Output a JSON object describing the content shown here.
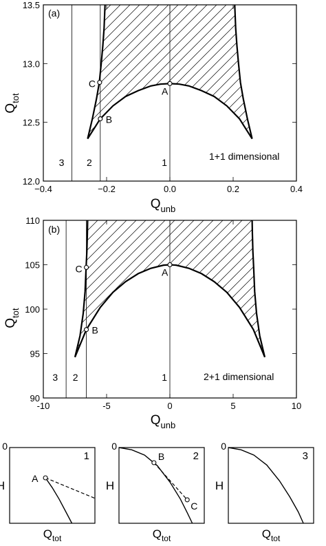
{
  "chart_data": [
    {
      "type": "line",
      "panel_label": "(a)",
      "annotation": "1+1 dimensional",
      "xlabel": "Q",
      "xlabel_sub": "unb",
      "ylabel": "Q",
      "ylabel_sub": "tot",
      "xlim": [
        -0.4,
        0.4
      ],
      "ylim": [
        12.0,
        13.5
      ],
      "x_ticks": [
        -0.4,
        -0.2,
        0.0,
        0.2,
        0.4
      ],
      "x_tick_labels": [
        "−0.4",
        "−0.2",
        "0.0",
        "0.2",
        "0.4"
      ],
      "y_ticks": [
        12.0,
        12.5,
        13.0,
        13.5
      ],
      "y_tick_labels": [
        "12.0",
        "12.5",
        "13.0",
        "13.5"
      ],
      "series": [
        {
          "role": "lower-boundary",
          "x": [
            -0.26,
            -0.22,
            -0.18,
            -0.14,
            -0.1,
            -0.06,
            -0.03,
            0.0,
            0.03,
            0.06,
            0.1,
            0.14,
            0.18,
            0.22,
            0.26
          ],
          "y": [
            12.36,
            12.53,
            12.64,
            12.72,
            12.77,
            12.81,
            12.825,
            12.83,
            12.825,
            12.81,
            12.77,
            12.72,
            12.64,
            12.53,
            12.36
          ]
        },
        {
          "role": "left-upper-boundary",
          "x": [
            -0.26,
            -0.245,
            -0.232,
            -0.223,
            -0.217,
            -0.212,
            -0.208,
            -0.205
          ],
          "y": [
            12.36,
            12.53,
            12.7,
            12.84,
            13.0,
            13.15,
            13.3,
            13.5
          ]
        },
        {
          "role": "right-upper-boundary",
          "x": [
            0.26,
            0.245,
            0.232,
            0.223,
            0.217,
            0.212,
            0.208,
            0.205
          ],
          "y": [
            12.36,
            12.53,
            12.7,
            12.84,
            13.0,
            13.15,
            13.3,
            13.5
          ]
        }
      ],
      "vertical_lines": [
        {
          "label": "1",
          "x": 0.0
        },
        {
          "label": "2",
          "x": -0.22
        },
        {
          "label": "3",
          "x": -0.31
        }
      ],
      "points": [
        {
          "label": "A",
          "x": 0.0,
          "y": 12.83
        },
        {
          "label": "B",
          "x": -0.22,
          "y": 12.53
        },
        {
          "label": "C",
          "x": -0.222,
          "y": 12.84
        }
      ]
    },
    {
      "type": "line",
      "panel_label": "(b)",
      "annotation": "2+1 dimensional",
      "xlabel": "Q",
      "xlabel_sub": "unb",
      "ylabel": "Q",
      "ylabel_sub": "tot",
      "xlim": [
        -10,
        10
      ],
      "ylim": [
        90,
        110
      ],
      "x_ticks": [
        -10,
        -5,
        0,
        5,
        10
      ],
      "x_tick_labels": [
        "-10",
        "-5",
        "0",
        "5",
        "10"
      ],
      "y_ticks": [
        90,
        95,
        100,
        105,
        110
      ],
      "y_tick_labels": [
        "90",
        "95",
        "100",
        "105",
        "110"
      ],
      "series": [
        {
          "role": "lower-boundary",
          "x": [
            -7.5,
            -6.6,
            -5.5,
            -4.5,
            -3.5,
            -2.5,
            -1.5,
            -0.5,
            0.0,
            0.5,
            1.5,
            2.5,
            3.5,
            4.5,
            5.5,
            6.6,
            7.5
          ],
          "y": [
            94.6,
            97.7,
            100.2,
            101.9,
            103.1,
            104.0,
            104.6,
            104.95,
            105.0,
            104.95,
            104.6,
            104.0,
            103.1,
            101.9,
            100.2,
            97.7,
            94.6
          ]
        },
        {
          "role": "left-upper-boundary",
          "x": [
            -7.5,
            -7.1,
            -6.85,
            -6.7,
            -6.62,
            -6.56,
            -6.52,
            -6.5
          ],
          "y": [
            94.6,
            97.0,
            99.5,
            102.0,
            104.7,
            106.5,
            108.5,
            110.0
          ]
        },
        {
          "role": "right-upper-boundary",
          "x": [
            7.5,
            7.1,
            6.85,
            6.7,
            6.62,
            6.56,
            6.52,
            6.5
          ],
          "y": [
            94.6,
            97.0,
            99.5,
            102.0,
            104.7,
            106.5,
            108.5,
            110.0
          ]
        }
      ],
      "vertical_lines": [
        {
          "label": "1",
          "x": 0.0
        },
        {
          "label": "2",
          "x": -6.6
        },
        {
          "label": "3",
          "x": -8.2
        }
      ],
      "points": [
        {
          "label": "A",
          "x": 0.0,
          "y": 105.0
        },
        {
          "label": "B",
          "x": -6.6,
          "y": 97.7
        },
        {
          "label": "C",
          "x": -6.6,
          "y": 104.7
        }
      ]
    },
    {
      "type": "line",
      "panel_label": "1",
      "xlabel": "Q",
      "xlabel_sub": "tot",
      "ylabel": "H",
      "y_tick_labels": [
        "0"
      ],
      "xlim": [
        0,
        1
      ],
      "ylim": [
        0,
        1
      ],
      "series": [
        {
          "role": "solid",
          "x": [
            0.42,
            0.5,
            0.58,
            0.66,
            0.73
          ],
          "y": [
            0.6,
            0.47,
            0.32,
            0.15,
            0.0
          ]
        },
        {
          "role": "dashed",
          "x": [
            0.42,
            1.0
          ],
          "y": [
            0.6,
            0.33
          ]
        }
      ],
      "points": [
        {
          "label": "A",
          "x": 0.42,
          "y": 0.6
        }
      ]
    },
    {
      "type": "line",
      "panel_label": "2",
      "xlabel": "Q",
      "xlabel_sub": "tot",
      "ylabel": "H",
      "y_tick_labels": [
        "0"
      ],
      "xlim": [
        0,
        1
      ],
      "ylim": [
        0,
        1
      ],
      "series": [
        {
          "role": "solid",
          "x": [
            0.0,
            0.15,
            0.3,
            0.45,
            0.6,
            0.72,
            0.8,
            0.86
          ],
          "y": [
            1.0,
            0.97,
            0.9,
            0.76,
            0.54,
            0.32,
            0.14,
            0.0
          ]
        },
        {
          "role": "dashed",
          "x": [
            0.41,
            0.8
          ],
          "y": [
            0.8,
            0.31
          ]
        }
      ],
      "points": [
        {
          "label": "B",
          "x": 0.41,
          "y": 0.8
        },
        {
          "label": "C",
          "x": 0.8,
          "y": 0.31
        }
      ]
    },
    {
      "type": "line",
      "panel_label": "3",
      "xlabel": "Q",
      "xlabel_sub": "tot",
      "ylabel": "H",
      "y_tick_labels": [
        "0"
      ],
      "xlim": [
        0,
        1
      ],
      "ylim": [
        0,
        1
      ],
      "series": [
        {
          "role": "solid",
          "x": [
            0.0,
            0.15,
            0.3,
            0.45,
            0.6,
            0.72,
            0.82,
            0.88
          ],
          "y": [
            1.0,
            0.97,
            0.9,
            0.77,
            0.56,
            0.35,
            0.15,
            0.0
          ]
        }
      ],
      "points": []
    }
  ]
}
